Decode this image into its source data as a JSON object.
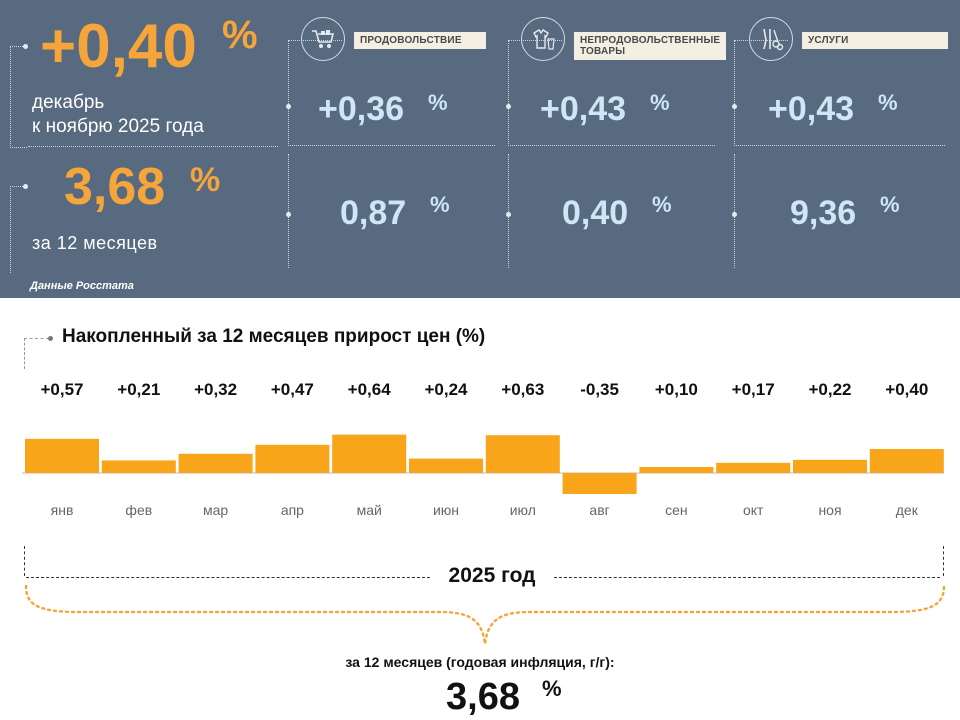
{
  "monthly": {
    "value": "+0,40",
    "unit": "%",
    "label_line1": "декабрь",
    "label_line2": "к ноябрю 2025 года"
  },
  "annual": {
    "value": "3,68",
    "unit": "%",
    "label": "за 12 месяцев"
  },
  "source": "Данные Росстата",
  "categories": [
    {
      "name": "ПРОДОВОЛЬСТВИЕ",
      "icon": "shopping-cart-icon",
      "monthly": "+0,36",
      "annual": "0,87",
      "unit": "%"
    },
    {
      "name": "НЕПРОДОВОЛЬСТВЕННЫЕ ТОВАРЫ",
      "icon": "clothes-icon",
      "monthly": "+0,43",
      "annual": "0,40",
      "unit": "%"
    },
    {
      "name": "УСЛУГИ",
      "icon": "tools-icon",
      "monthly": "+0,43",
      "annual": "9,36",
      "unit": "%"
    }
  ],
  "colors": {
    "panel": "#576a7f",
    "accent": "#f6a53a",
    "bar": "#f9a51a",
    "pale_value": "#cfe6f6"
  },
  "chart_data": {
    "type": "bar",
    "title": "Накопленный за 12 месяцев прирост цен (%)",
    "categories": [
      "янв",
      "фев",
      "мар",
      "апр",
      "май",
      "июн",
      "июл",
      "авг",
      "сен",
      "окт",
      "ноя",
      "дек"
    ],
    "values": [
      0.57,
      0.21,
      0.32,
      0.47,
      0.64,
      0.24,
      0.63,
      -0.35,
      0.1,
      0.17,
      0.22,
      0.4
    ],
    "value_labels": [
      "+0,57",
      "+0,21",
      "+0,32",
      "+0,47",
      "+0,64",
      "+0,24",
      "+0,63",
      "-0,35",
      "+0,10",
      "+0,17",
      "+0,22",
      "+0,40"
    ],
    "period_label": "2025 год",
    "grid": false
  },
  "summary": {
    "label": "за 12 месяцев (годовая инфляция, г/г):",
    "value": "3,68",
    "unit": "%"
  }
}
